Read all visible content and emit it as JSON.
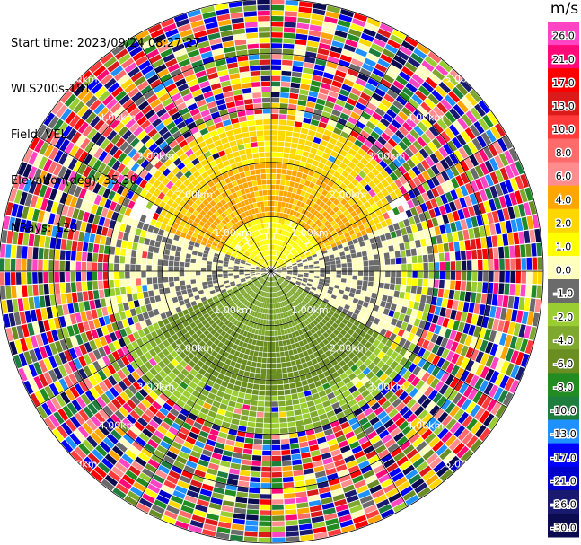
{
  "header": {
    "start_time": "Start time: 2023/09/24 08:27:27",
    "instrument": "WLS200s-181",
    "field": "Field: VEL",
    "elevation": "Elevation(deg): 35.30",
    "nrays": "NRays: 120"
  },
  "chart_data": {
    "type": "heatmap",
    "projection": "polar-ppi",
    "field": "VEL",
    "units": "m/s",
    "nrays": 120,
    "range_rings_km": [
      1.0,
      2.0,
      3.0,
      4.0,
      5.0
    ],
    "range_ring_labels": [
      "1.00km",
      "2.00km",
      "3.00km",
      "4.00km",
      "5.00km"
    ],
    "max_range_km": 5.0,
    "colorbar": {
      "unit": "m/s",
      "tick_labels": [
        "26.0",
        "21.0",
        "17.0",
        "13.0",
        "10.0",
        "8.0",
        "6.0",
        "4.0",
        "2.0",
        "1.0",
        "0.0",
        "-1.0",
        "-2.0",
        "-4.0",
        "-6.0",
        "-8.0",
        "-10.0",
        "-13.0",
        "-17.0",
        "-21.0",
        "-26.0",
        "-30.0"
      ],
      "colors": [
        "#ff44c4",
        "#ff0a78",
        "#ff0000",
        "#dd1a1a",
        "#ff3a3a",
        "#ff6b6b",
        "#ff8d8d",
        "#ffa500",
        "#ffd700",
        "#ffff00",
        "#ffffbe",
        "#6b6b6b",
        "#9acd32",
        "#7fa82e",
        "#6b8e23",
        "#228b22",
        "#1e7e3e",
        "#1e90ff",
        "#0000ff",
        "#0000cd",
        "#191970",
        "#0b0b50"
      ]
    },
    "velocity_regions": [
      {
        "region": "north-inner",
        "range_km": [
          0.0,
          1.0
        ],
        "value": 1.5
      },
      {
        "region": "north-mid",
        "range_km": [
          1.0,
          2.0
        ],
        "value": 4.5
      },
      {
        "region": "north-outer",
        "range_km": [
          2.0,
          2.8
        ],
        "value": 2.5
      },
      {
        "region": "south-inner",
        "range_km": [
          0.0,
          1.2
        ],
        "value": -3.0
      },
      {
        "region": "south-mid",
        "range_km": [
          1.2,
          2.3
        ],
        "value": -5.0
      },
      {
        "region": "south-outer",
        "range_km": [
          2.3,
          3.0
        ],
        "value": -2.0
      },
      {
        "region": "side-gaps",
        "range_km": [
          0.3,
          2.5
        ],
        "value": 0.0
      },
      {
        "region": "far-field-noise",
        "range_km": [
          3.0,
          5.0
        ],
        "value": null
      }
    ]
  }
}
